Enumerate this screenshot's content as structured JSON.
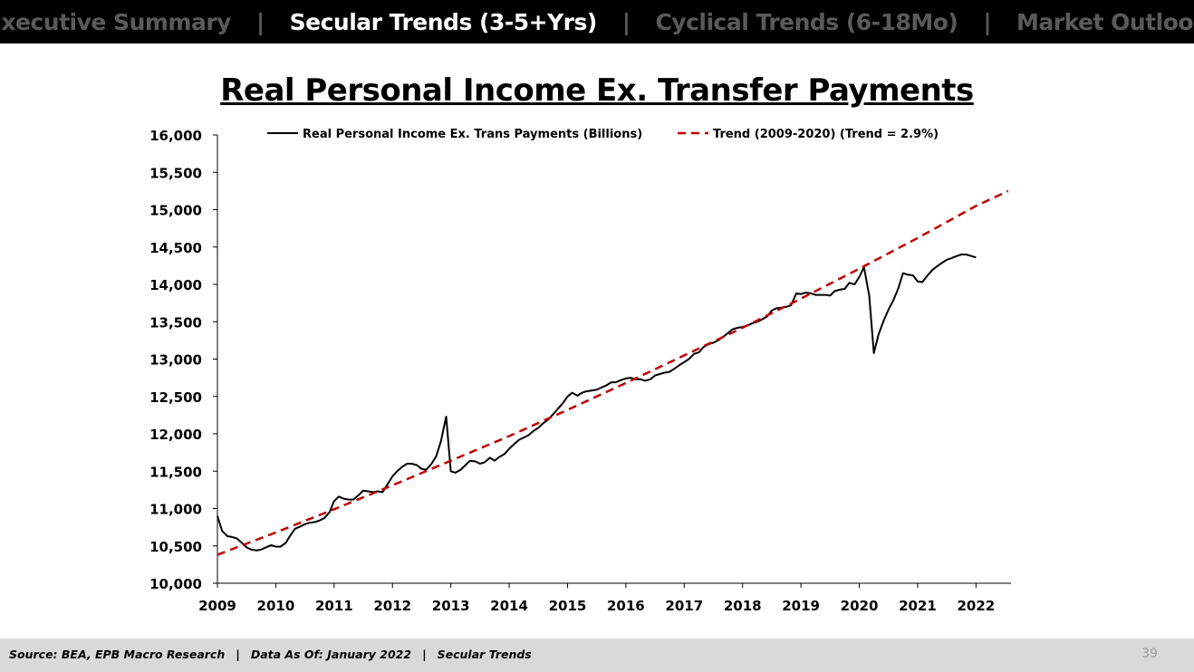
{
  "nav": {
    "tabs": [
      {
        "label": "Executive Summary",
        "active": false
      },
      {
        "label": "Secular Trends (3-5+Yrs)",
        "active": true
      },
      {
        "label": "Cyclical Trends (6-18Mo)",
        "active": false
      },
      {
        "label": "Market Outlook",
        "active": false
      }
    ],
    "separator": "|"
  },
  "page_title": "Real Personal Income Ex. Transfer Payments",
  "chart_data": {
    "type": "line",
    "title": "Real Personal Income Ex. Transfer Payments",
    "xlabel": "",
    "ylabel": "",
    "xlim": [
      2009,
      2022.6
    ],
    "ylim": [
      10000,
      16000
    ],
    "yticks": [
      10000,
      10500,
      11000,
      11500,
      12000,
      12500,
      13000,
      13500,
      14000,
      14500,
      15000,
      15500,
      16000
    ],
    "ytick_labels": [
      "10,000",
      "10,500",
      "11,000",
      "11,500",
      "12,000",
      "12,500",
      "13,000",
      "13,500",
      "14,000",
      "14,500",
      "15,000",
      "15,500",
      "16,000"
    ],
    "xtick_labels": [
      "2009",
      "2010",
      "2011",
      "2012",
      "2013",
      "2014",
      "2015",
      "2016",
      "2017",
      "2018",
      "2019",
      "2020",
      "2021",
      "2022"
    ],
    "grid": false,
    "legend": "top",
    "series": [
      {
        "name": "Real Personal Income Ex. Trans Payments (Billions)",
        "color": "#000000",
        "style": "solid",
        "points": [
          [
            2009.0,
            10900
          ],
          [
            2009.08,
            10700
          ],
          [
            2009.17,
            10630
          ],
          [
            2009.25,
            10620
          ],
          [
            2009.33,
            10600
          ],
          [
            2009.42,
            10540
          ],
          [
            2009.5,
            10480
          ],
          [
            2009.58,
            10450
          ],
          [
            2009.67,
            10440
          ],
          [
            2009.75,
            10450
          ],
          [
            2009.83,
            10480
          ],
          [
            2009.92,
            10510
          ],
          [
            2010.0,
            10490
          ],
          [
            2010.08,
            10490
          ],
          [
            2010.17,
            10540
          ],
          [
            2010.25,
            10640
          ],
          [
            2010.33,
            10730
          ],
          [
            2010.42,
            10760
          ],
          [
            2010.5,
            10790
          ],
          [
            2010.58,
            10810
          ],
          [
            2010.67,
            10820
          ],
          [
            2010.75,
            10840
          ],
          [
            2010.83,
            10870
          ],
          [
            2010.92,
            10950
          ],
          [
            2011.0,
            11100
          ],
          [
            2011.08,
            11160
          ],
          [
            2011.17,
            11130
          ],
          [
            2011.25,
            11120
          ],
          [
            2011.33,
            11120
          ],
          [
            2011.42,
            11180
          ],
          [
            2011.5,
            11240
          ],
          [
            2011.58,
            11230
          ],
          [
            2011.67,
            11220
          ],
          [
            2011.75,
            11230
          ],
          [
            2011.83,
            11220
          ],
          [
            2011.92,
            11330
          ],
          [
            2012.0,
            11430
          ],
          [
            2012.08,
            11500
          ],
          [
            2012.17,
            11560
          ],
          [
            2012.25,
            11600
          ],
          [
            2012.33,
            11600
          ],
          [
            2012.42,
            11580
          ],
          [
            2012.5,
            11530
          ],
          [
            2012.58,
            11520
          ],
          [
            2012.67,
            11600
          ],
          [
            2012.75,
            11700
          ],
          [
            2012.83,
            11900
          ],
          [
            2012.92,
            12230
          ],
          [
            2013.0,
            11500
          ],
          [
            2013.08,
            11480
          ],
          [
            2013.17,
            11520
          ],
          [
            2013.25,
            11580
          ],
          [
            2013.33,
            11640
          ],
          [
            2013.42,
            11630
          ],
          [
            2013.5,
            11600
          ],
          [
            2013.58,
            11620
          ],
          [
            2013.67,
            11680
          ],
          [
            2013.75,
            11640
          ],
          [
            2013.83,
            11690
          ],
          [
            2013.92,
            11730
          ],
          [
            2014.0,
            11800
          ],
          [
            2014.08,
            11860
          ],
          [
            2014.17,
            11920
          ],
          [
            2014.25,
            11950
          ],
          [
            2014.33,
            11980
          ],
          [
            2014.42,
            12040
          ],
          [
            2014.5,
            12080
          ],
          [
            2014.58,
            12140
          ],
          [
            2014.67,
            12190
          ],
          [
            2014.75,
            12260
          ],
          [
            2014.83,
            12330
          ],
          [
            2014.92,
            12410
          ],
          [
            2015.0,
            12500
          ],
          [
            2015.08,
            12550
          ],
          [
            2015.17,
            12510
          ],
          [
            2015.25,
            12550
          ],
          [
            2015.33,
            12570
          ],
          [
            2015.42,
            12580
          ],
          [
            2015.5,
            12590
          ],
          [
            2015.58,
            12620
          ],
          [
            2015.67,
            12650
          ],
          [
            2015.75,
            12690
          ],
          [
            2015.83,
            12690
          ],
          [
            2015.92,
            12720
          ],
          [
            2016.0,
            12740
          ],
          [
            2016.08,
            12750
          ],
          [
            2016.17,
            12730
          ],
          [
            2016.25,
            12730
          ],
          [
            2016.33,
            12710
          ],
          [
            2016.42,
            12730
          ],
          [
            2016.5,
            12780
          ],
          [
            2016.58,
            12800
          ],
          [
            2016.67,
            12820
          ],
          [
            2016.75,
            12830
          ],
          [
            2016.83,
            12870
          ],
          [
            2016.92,
            12920
          ],
          [
            2017.0,
            12960
          ],
          [
            2017.08,
            13000
          ],
          [
            2017.17,
            13070
          ],
          [
            2017.25,
            13090
          ],
          [
            2017.33,
            13160
          ],
          [
            2017.42,
            13200
          ],
          [
            2017.5,
            13220
          ],
          [
            2017.58,
            13250
          ],
          [
            2017.67,
            13300
          ],
          [
            2017.75,
            13350
          ],
          [
            2017.83,
            13400
          ],
          [
            2017.92,
            13420
          ],
          [
            2018.0,
            13430
          ],
          [
            2018.08,
            13450
          ],
          [
            2018.17,
            13480
          ],
          [
            2018.25,
            13500
          ],
          [
            2018.33,
            13530
          ],
          [
            2018.42,
            13570
          ],
          [
            2018.5,
            13650
          ],
          [
            2018.58,
            13680
          ],
          [
            2018.67,
            13690
          ],
          [
            2018.75,
            13700
          ],
          [
            2018.83,
            13720
          ],
          [
            2018.92,
            13880
          ],
          [
            2019.0,
            13870
          ],
          [
            2019.08,
            13890
          ],
          [
            2019.17,
            13880
          ],
          [
            2019.25,
            13860
          ],
          [
            2019.33,
            13860
          ],
          [
            2019.42,
            13860
          ],
          [
            2019.5,
            13850
          ],
          [
            2019.58,
            13910
          ],
          [
            2019.67,
            13930
          ],
          [
            2019.75,
            13940
          ],
          [
            2019.83,
            14020
          ],
          [
            2019.92,
            14000
          ],
          [
            2020.0,
            14100
          ],
          [
            2020.08,
            14230
          ],
          [
            2020.17,
            13850
          ],
          [
            2020.25,
            13080
          ],
          [
            2020.33,
            13330
          ],
          [
            2020.42,
            13520
          ],
          [
            2020.5,
            13660
          ],
          [
            2020.58,
            13780
          ],
          [
            2020.67,
            13950
          ],
          [
            2020.75,
            14150
          ],
          [
            2020.83,
            14130
          ],
          [
            2020.92,
            14120
          ],
          [
            2021.0,
            14040
          ],
          [
            2021.08,
            14030
          ],
          [
            2021.17,
            14120
          ],
          [
            2021.25,
            14190
          ],
          [
            2021.33,
            14240
          ],
          [
            2021.42,
            14290
          ],
          [
            2021.5,
            14330
          ],
          [
            2021.58,
            14350
          ],
          [
            2021.67,
            14380
          ],
          [
            2021.75,
            14400
          ],
          [
            2021.83,
            14400
          ],
          [
            2021.92,
            14380
          ],
          [
            2022.0,
            14360
          ]
        ]
      },
      {
        "name": "Trend (2009-2020) (Trend = 2.9%)",
        "color": "#c00000",
        "style": "dashed",
        "growth_rate": 0.029,
        "points": [
          [
            2009.0,
            10380
          ],
          [
            2010.0,
            10680
          ],
          [
            2011.0,
            10990
          ],
          [
            2012.0,
            11310
          ],
          [
            2013.0,
            11640
          ],
          [
            2014.0,
            11970
          ],
          [
            2015.0,
            12320
          ],
          [
            2016.0,
            12680
          ],
          [
            2017.0,
            13050
          ],
          [
            2018.0,
            13420
          ],
          [
            2019.0,
            13810
          ],
          [
            2020.0,
            14210
          ],
          [
            2021.0,
            14620
          ],
          [
            2022.0,
            15050
          ],
          [
            2022.55,
            15250
          ]
        ]
      }
    ]
  },
  "footer": {
    "source": "Source: BEA, EPB Macro Research",
    "data_as_of": "Data As Of: January 2022",
    "section": "Secular Trends",
    "separator": "|",
    "page_number": "39"
  }
}
